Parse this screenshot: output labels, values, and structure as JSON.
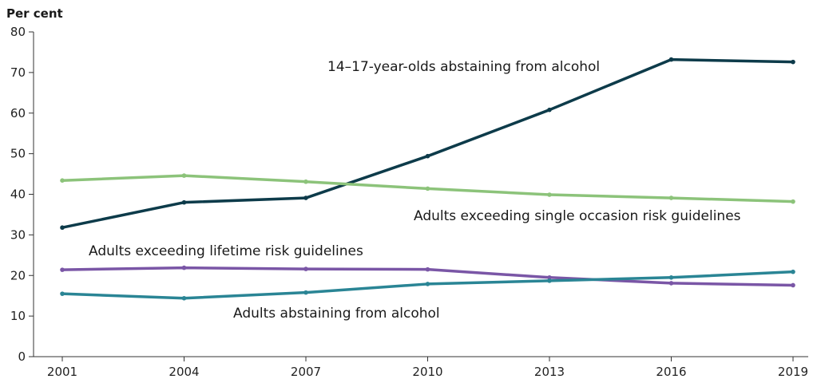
{
  "chart_data": {
    "type": "line",
    "ylabel": "Per cent",
    "xlabel": "",
    "ylim": [
      0,
      80
    ],
    "yticks": [
      0,
      10,
      20,
      30,
      40,
      50,
      60,
      70,
      80
    ],
    "categories": [
      "2001",
      "2004",
      "2007",
      "2010",
      "2013",
      "2016",
      "2019"
    ],
    "grid": false,
    "series": [
      {
        "name": "14–17-year-olds abstaining from alcohol",
        "color": "#0d3b4a",
        "values": [
          31.8,
          38.0,
          39.1,
          49.4,
          60.8,
          73.2,
          72.6
        ]
      },
      {
        "name": "Adults exceeding single occasion risk guidelines",
        "color": "#8cc37a",
        "values": [
          43.4,
          44.6,
          43.1,
          41.4,
          39.9,
          39.1,
          38.2
        ]
      },
      {
        "name": "Adults exceeding lifetime risk guidelines",
        "color": "#7a56a6",
        "values": [
          21.4,
          21.9,
          21.6,
          21.5,
          19.5,
          18.1,
          17.6
        ]
      },
      {
        "name": "Adults abstaining from alcohol",
        "color": "#2a8595",
        "values": [
          15.5,
          14.4,
          15.8,
          17.9,
          18.7,
          19.5,
          20.9
        ]
      }
    ]
  }
}
